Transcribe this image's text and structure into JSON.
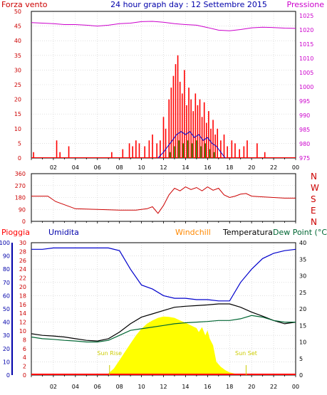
{
  "title": "24 hour graph day : 12 Settembre 2015",
  "colors": {
    "wind": "#ff0000",
    "gust": "#ff0000",
    "avg": "#0000cc",
    "low": "#009900",
    "pressure": "#cc00cc",
    "dir": "#cc0000",
    "rain": "#ff0000",
    "humidity": "#0000cc",
    "temperature": "#000000",
    "dewpoint": "#006633",
    "solar": "#ffff00",
    "solarText": "#cccc00",
    "windchill": "#ff8800",
    "axisLeft": "#cc0000",
    "axisBlue": "#0000aa",
    "grid": "#cccccc"
  },
  "x_labels": [
    "02",
    "04",
    "06",
    "08",
    "10",
    "12",
    "14",
    "16",
    "18",
    "20",
    "22",
    "00"
  ],
  "chart_data": [
    {
      "type": "bar",
      "panel": "wind-pressure",
      "title": "24 hour graph day : 12 Settembre 2015",
      "left_axis": {
        "label": "Forza vento",
        "ticks": [
          "50",
          "45",
          "40",
          "35",
          "30",
          "25",
          "20",
          "15",
          "10",
          "5",
          "0"
        ],
        "ylim": [
          0,
          50
        ]
      },
      "right_axis": {
        "label": "Pressione",
        "ticks": [
          "1025",
          "1020",
          "1015",
          "1010",
          "1005",
          "1000",
          "995",
          "990",
          "985",
          "980",
          "975"
        ],
        "ylim": [
          975,
          1025
        ]
      },
      "x_hours": [
        0,
        1,
        2,
        3,
        4,
        5,
        6,
        7,
        8,
        9,
        10,
        11,
        12,
        13,
        14,
        15,
        16,
        17,
        18,
        19,
        20,
        21,
        22,
        23,
        24
      ],
      "pressure": [
        1021.2,
        1021.0,
        1020.8,
        1020.5,
        1020.5,
        1020.3,
        1020.0,
        1020.3,
        1020.8,
        1021.0,
        1021.5,
        1021.6,
        1021.3,
        1020.8,
        1020.5,
        1020.3,
        1019.5,
        1018.6,
        1018.4,
        1018.8,
        1019.4,
        1019.6,
        1019.5,
        1019.3,
        1019.2
      ],
      "gust_spikes": [
        [
          0.2,
          2
        ],
        [
          2.3,
          6
        ],
        [
          2.6,
          2
        ],
        [
          3.4,
          4
        ],
        [
          7.3,
          2
        ],
        [
          8.3,
          3
        ],
        [
          8.9,
          5
        ],
        [
          9.2,
          4
        ],
        [
          9.5,
          6
        ],
        [
          9.8,
          5
        ],
        [
          10.3,
          4
        ],
        [
          10.7,
          6
        ],
        [
          11.0,
          8
        ],
        [
          11.4,
          5
        ],
        [
          11.7,
          6
        ],
        [
          12.0,
          14
        ],
        [
          12.2,
          10
        ],
        [
          12.5,
          20
        ],
        [
          12.7,
          24
        ],
        [
          12.9,
          28
        ],
        [
          13.1,
          32
        ],
        [
          13.3,
          35
        ],
        [
          13.5,
          26
        ],
        [
          13.7,
          22
        ],
        [
          13.9,
          30
        ],
        [
          14.1,
          18
        ],
        [
          14.3,
          24
        ],
        [
          14.5,
          20
        ],
        [
          14.7,
          16
        ],
        [
          14.9,
          22
        ],
        [
          15.1,
          18
        ],
        [
          15.3,
          20
        ],
        [
          15.5,
          14
        ],
        [
          15.7,
          19
        ],
        [
          15.9,
          12
        ],
        [
          16.1,
          16
        ],
        [
          16.3,
          10
        ],
        [
          16.5,
          13
        ],
        [
          16.7,
          8
        ],
        [
          16.9,
          10
        ],
        [
          17.2,
          6
        ],
        [
          17.5,
          8
        ],
        [
          17.8,
          4
        ],
        [
          18.2,
          6
        ],
        [
          18.5,
          5
        ],
        [
          18.9,
          3
        ],
        [
          19.3,
          4
        ],
        [
          19.6,
          6
        ],
        [
          20.5,
          5
        ],
        [
          21.2,
          2
        ]
      ],
      "avg_wind": [
        [
          11.5,
          0
        ],
        [
          12.0,
          2
        ],
        [
          12.4,
          4
        ],
        [
          12.8,
          6
        ],
        [
          13.2,
          8
        ],
        [
          13.6,
          9
        ],
        [
          14.0,
          8
        ],
        [
          14.4,
          9
        ],
        [
          14.8,
          7
        ],
        [
          15.2,
          8
        ],
        [
          15.6,
          6
        ],
        [
          16.0,
          7
        ],
        [
          16.4,
          5
        ],
        [
          16.8,
          4
        ],
        [
          17.2,
          2
        ],
        [
          17.6,
          0
        ]
      ],
      "low_wind": [
        [
          12.2,
          0
        ],
        [
          12.6,
          2
        ],
        [
          13.0,
          4
        ],
        [
          13.4,
          6
        ],
        [
          13.8,
          5
        ],
        [
          14.2,
          6
        ],
        [
          14.6,
          5
        ],
        [
          15.0,
          6
        ],
        [
          15.4,
          4
        ],
        [
          15.8,
          5
        ],
        [
          16.2,
          3
        ],
        [
          16.6,
          2
        ],
        [
          17.0,
          0
        ]
      ]
    },
    {
      "type": "line",
      "panel": "wind-direction",
      "left_axis": {
        "ticks": [
          "360",
          "270",
          "180",
          "90",
          "0"
        ],
        "ylim": [
          0,
          360
        ]
      },
      "right_axis": {
        "ticks": [
          "N",
          "W",
          "S",
          "E",
          "N"
        ]
      },
      "x_hours": [
        0,
        1.5,
        2.2,
        4,
        6,
        8,
        9.5,
        10.5,
        11,
        11.5,
        12,
        12.5,
        13,
        13.5,
        14,
        14.5,
        15,
        15.5,
        16,
        16.5,
        17,
        17.5,
        18,
        18.5,
        19,
        19.5,
        20,
        21,
        22,
        23,
        24
      ],
      "direction": [
        190,
        190,
        150,
        95,
        90,
        85,
        85,
        95,
        110,
        60,
        120,
        200,
        250,
        230,
        260,
        240,
        255,
        230,
        260,
        235,
        250,
        200,
        180,
        190,
        205,
        210,
        190,
        185,
        180,
        175,
        175
      ]
    },
    {
      "type": "line",
      "panel": "rain-humidity-temperature",
      "header": {
        "rain": "Pioggia",
        "humidity": "Umidita",
        "windchill": "Windchill",
        "temperature": "Temperatura",
        "dewpoint": "Dew Point (°C"
      },
      "axis_humidity": {
        "ticks": [
          "100",
          "90",
          "80",
          "70",
          "60",
          "50",
          "40",
          "30",
          "20",
          "10",
          "0"
        ],
        "ylim": [
          0,
          100
        ]
      },
      "axis_rain": {
        "ticks": [
          "30",
          "28",
          "26",
          "24",
          "22",
          "20",
          "18",
          "16",
          "14",
          "12",
          "10",
          "8",
          "6",
          "4",
          "2",
          "0"
        ],
        "ylim": [
          0,
          30
        ]
      },
      "axis_temperature": {
        "ticks": [
          "40",
          "35",
          "30",
          "25",
          "20",
          "15",
          "10",
          "5",
          "0"
        ],
        "ylim": [
          0,
          40
        ]
      },
      "x_hours": [
        0,
        1,
        2,
        3,
        4,
        5,
        6,
        7,
        8,
        9,
        10,
        11,
        12,
        13,
        14,
        15,
        16,
        17,
        18,
        19,
        20,
        21,
        22,
        23,
        24
      ],
      "humidity": [
        95,
        95,
        96,
        96,
        96,
        96,
        96,
        96,
        94,
        80,
        68,
        65,
        60,
        58,
        58,
        57,
        57,
        56,
        56,
        70,
        80,
        88,
        92,
        94,
        95
      ],
      "temperature": [
        12.5,
        12.0,
        11.8,
        11.5,
        11.0,
        10.5,
        10.3,
        11.0,
        13.0,
        15.5,
        17.5,
        18.5,
        19.5,
        20.5,
        20.8,
        21.0,
        21.2,
        21.5,
        21.5,
        20.5,
        19.0,
        17.8,
        16.5,
        15.5,
        16.0
      ],
      "dewpoint": [
        11.5,
        11.0,
        10.8,
        10.5,
        10.3,
        10.0,
        10.0,
        10.5,
        12.0,
        13.5,
        14.0,
        14.5,
        15.0,
        15.5,
        15.8,
        16.0,
        16.2,
        16.5,
        16.5,
        17.0,
        18.0,
        17.5,
        16.5,
        16.0,
        16.0
      ],
      "solar_hours": [
        7.0,
        7.5,
        8.0,
        8.5,
        9.0,
        9.5,
        10.0,
        10.5,
        11.0,
        11.5,
        12.0,
        12.5,
        13.0,
        13.5,
        14.0,
        14.5,
        15.0,
        15.2,
        15.5,
        15.8,
        16.0,
        16.2,
        16.5,
        16.8,
        17.2,
        17.6,
        18.0,
        18.5,
        19.0
      ],
      "solar_temp_equiv": [
        0.5,
        2.0,
        4.5,
        7.0,
        9.5,
        12.0,
        14.0,
        15.5,
        16.5,
        17.3,
        17.7,
        17.6,
        17.3,
        16.5,
        15.8,
        15.0,
        14.2,
        13.0,
        14.5,
        12.0,
        13.5,
        11.0,
        9.0,
        4.0,
        2.5,
        1.5,
        0.8,
        0.4,
        0.0
      ],
      "rain": 0,
      "sun_rise_label": "Sun Rise",
      "sun_set_label": "Sun Set",
      "sun_rise_hour": 7.1,
      "sun_set_hour": 19.5
    }
  ]
}
